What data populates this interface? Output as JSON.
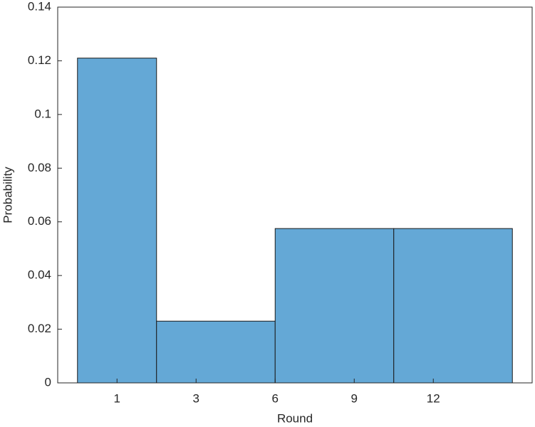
{
  "chart_data": {
    "type": "histogram",
    "x_label": "Round",
    "y_label": "Probability",
    "bins": [
      0.5,
      1.5,
      3,
      4.5,
      6
    ],
    "values": [
      0.121,
      0.023,
      0.0575,
      0.0575
    ],
    "color": "#64a8d6",
    "xlim": [
      0.25,
      6.25
    ],
    "xticks": [
      {
        "value": 1,
        "label": "1"
      },
      {
        "value": 2,
        "label": "3"
      },
      {
        "value": 3,
        "label": "6"
      },
      {
        "value": 4,
        "label": "9"
      },
      {
        "value": 5,
        "label": "12"
      }
    ],
    "ylim": [
      0,
      0.14
    ],
    "yticks": [
      0,
      0.02,
      0.04,
      0.06,
      0.08,
      0.1,
      0.12,
      0.14
    ]
  }
}
